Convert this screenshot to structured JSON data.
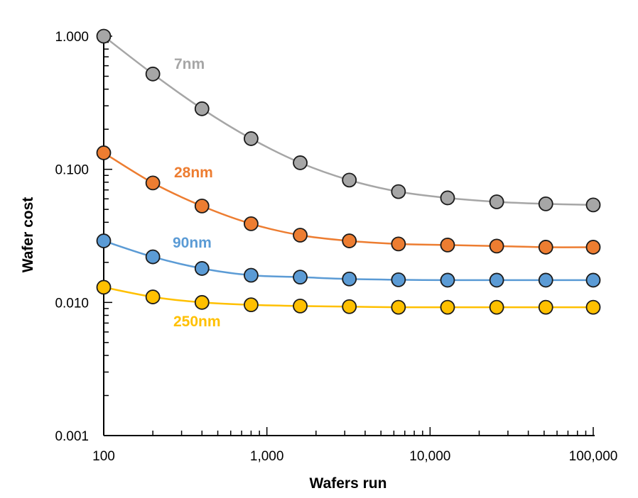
{
  "chart_data": {
    "type": "line",
    "xlabel": "Wafers run",
    "ylabel": "Wafer cost",
    "x_scale": "log",
    "y_scale": "log",
    "xlim": [
      100,
      100000
    ],
    "ylim": [
      0.001,
      1
    ],
    "x_ticks": [
      {
        "value": 100,
        "label": "100"
      },
      {
        "value": 1000,
        "label": "1,000"
      },
      {
        "value": 10000,
        "label": "10,000"
      },
      {
        "value": 100000,
        "label": "100,000"
      }
    ],
    "y_ticks": [
      {
        "value": 0.001,
        "label": "0.001"
      },
      {
        "value": 0.01,
        "label": "0.010"
      },
      {
        "value": 0.1,
        "label": "0.100"
      },
      {
        "value": 1,
        "label": "1.000"
      }
    ],
    "grid": false,
    "legend": "inline labels",
    "x": [
      100,
      200,
      400,
      800,
      1600,
      3200,
      6400,
      12800,
      25600,
      51200,
      100000
    ],
    "series": [
      {
        "name": "7nm",
        "color": "#A6A6A6",
        "values": [
          1.0,
          0.52,
          0.285,
          0.17,
          0.112,
          0.083,
          0.068,
          0.061,
          0.057,
          0.055,
          0.054
        ]
      },
      {
        "name": "28nm",
        "color": "#ED7D31",
        "values": [
          0.133,
          0.079,
          0.053,
          0.039,
          0.032,
          0.029,
          0.0275,
          0.027,
          0.0265,
          0.026,
          0.026
        ]
      },
      {
        "name": "90nm",
        "color": "#5B9BD5",
        "values": [
          0.029,
          0.022,
          0.018,
          0.016,
          0.0155,
          0.015,
          0.0148,
          0.0147,
          0.0147,
          0.0147,
          0.0147
        ]
      },
      {
        "name": "250nm",
        "color": "#FFC000",
        "values": [
          0.013,
          0.011,
          0.01,
          0.0096,
          0.0094,
          0.0093,
          0.0092,
          0.0092,
          0.0092,
          0.0092,
          0.0092
        ]
      }
    ]
  }
}
